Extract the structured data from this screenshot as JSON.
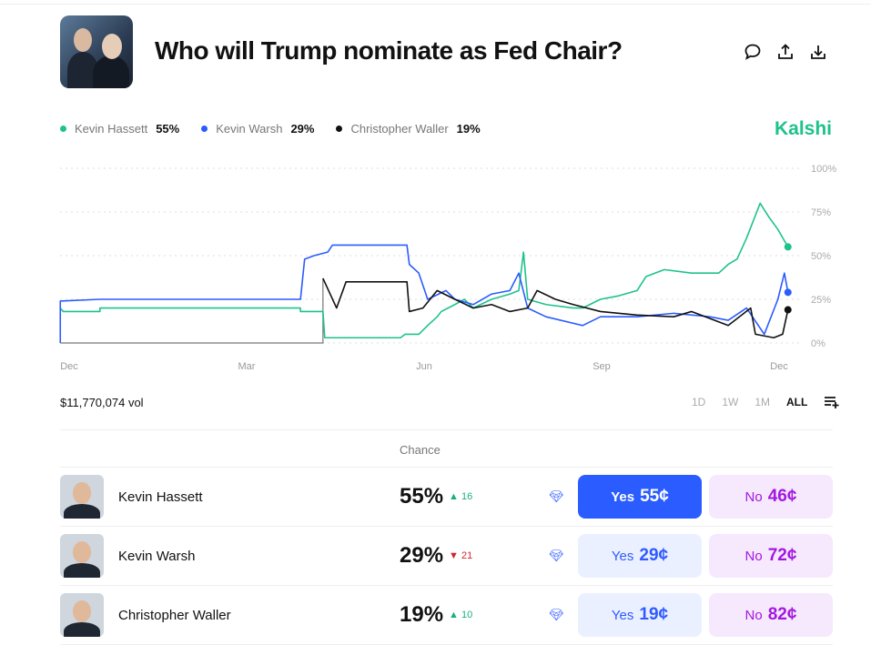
{
  "title": "Who will Trump nominate as Fed Chair?",
  "brand": "Kalshi",
  "legend": [
    {
      "name": "Kevin Hassett",
      "value": "55%",
      "color": "#1ec28b"
    },
    {
      "name": "Kevin Warsh",
      "value": "29%",
      "color": "#2a5cff"
    },
    {
      "name": "Christopher Waller",
      "value": "19%",
      "color": "#111111"
    }
  ],
  "volume": "$11,770,074 vol",
  "ranges": [
    "1D",
    "1W",
    "1M",
    "ALL"
  ],
  "active_range": "ALL",
  "chance_header": "Chance",
  "rows": [
    {
      "name": "Kevin Hassett",
      "pct": "55%",
      "dir": "up",
      "change": "16",
      "yes": "Yes",
      "yes_price": "55¢",
      "no": "No",
      "no_price": "46¢"
    },
    {
      "name": "Kevin Warsh",
      "pct": "29%",
      "dir": "down",
      "change": "21",
      "yes": "Yes",
      "yes_price": "29¢",
      "no": "No",
      "no_price": "72¢"
    },
    {
      "name": "Christopher Waller",
      "pct": "19%",
      "dir": "up",
      "change": "10",
      "yes": "Yes",
      "yes_price": "19¢",
      "no": "No",
      "no_price": "82¢"
    }
  ],
  "chart_data": {
    "type": "line",
    "x_unit": "months since Dec",
    "x_ticks": [
      {
        "label": "Dec",
        "m": 0
      },
      {
        "label": "Mar",
        "m": 3
      },
      {
        "label": "Jun",
        "m": 6
      },
      {
        "label": "Sep",
        "m": 9
      },
      {
        "label": "Dec",
        "m": 12
      }
    ],
    "y_ticks": [
      "0%",
      "25%",
      "50%",
      "75%",
      "100%"
    ],
    "ylim": [
      0,
      100
    ],
    "series": [
      {
        "name": "Kevin Hassett",
        "color": "#1ec28b",
        "points": [
          [
            -0.15,
            20
          ],
          [
            -0.1,
            18
          ],
          [
            0.52,
            18
          ],
          [
            0.52,
            20
          ],
          [
            3.91,
            20
          ],
          [
            3.91,
            18
          ],
          [
            4.29,
            18
          ],
          [
            4.32,
            3
          ],
          [
            5.6,
            3
          ],
          [
            5.68,
            5
          ],
          [
            5.91,
            5
          ],
          [
            6.06,
            10
          ],
          [
            6.22,
            15
          ],
          [
            6.29,
            18
          ],
          [
            6.52,
            22
          ],
          [
            6.68,
            25
          ],
          [
            6.83,
            20
          ],
          [
            7.14,
            25
          ],
          [
            7.45,
            28
          ],
          [
            7.6,
            30
          ],
          [
            7.68,
            52
          ],
          [
            7.75,
            25
          ],
          [
            8.06,
            22
          ],
          [
            8.52,
            20
          ],
          [
            8.68,
            20
          ],
          [
            8.98,
            25
          ],
          [
            9.29,
            27
          ],
          [
            9.6,
            30
          ],
          [
            9.75,
            38
          ],
          [
            10.06,
            42
          ],
          [
            10.52,
            40
          ],
          [
            10.98,
            40
          ],
          [
            11.14,
            45
          ],
          [
            11.29,
            48
          ],
          [
            11.45,
            60
          ],
          [
            11.68,
            80
          ],
          [
            11.83,
            72
          ],
          [
            11.98,
            65
          ],
          [
            12.15,
            55
          ]
        ]
      },
      {
        "name": "Kevin Warsh",
        "color": "#2a5cff",
        "points": [
          [
            -0.15,
            0
          ],
          [
            -0.15,
            24
          ],
          [
            0.52,
            25
          ],
          [
            3.91,
            25
          ],
          [
            3.98,
            48
          ],
          [
            4.14,
            50
          ],
          [
            4.37,
            52
          ],
          [
            4.45,
            56
          ],
          [
            5.71,
            56
          ],
          [
            5.75,
            45
          ],
          [
            5.91,
            40
          ],
          [
            6.06,
            25
          ],
          [
            6.37,
            30
          ],
          [
            6.52,
            25
          ],
          [
            6.83,
            22
          ],
          [
            7.14,
            28
          ],
          [
            7.45,
            30
          ],
          [
            7.6,
            40
          ],
          [
            7.75,
            20
          ],
          [
            8.06,
            15
          ],
          [
            8.68,
            10
          ],
          [
            8.98,
            15
          ],
          [
            9.6,
            15
          ],
          [
            10.22,
            17
          ],
          [
            10.83,
            15
          ],
          [
            11.14,
            13
          ],
          [
            11.45,
            20
          ],
          [
            11.75,
            5
          ],
          [
            11.98,
            25
          ],
          [
            12.09,
            40
          ],
          [
            12.15,
            29
          ]
        ]
      },
      {
        "name": "Christopher Waller",
        "color": "#111111",
        "points": [
          [
            4.29,
            37
          ],
          [
            4.52,
            20
          ],
          [
            4.68,
            35
          ],
          [
            5.71,
            35
          ],
          [
            5.75,
            18
          ],
          [
            5.98,
            20
          ],
          [
            6.22,
            30
          ],
          [
            6.52,
            25
          ],
          [
            6.83,
            20
          ],
          [
            7.14,
            22
          ],
          [
            7.45,
            18
          ],
          [
            7.75,
            20
          ],
          [
            7.91,
            30
          ],
          [
            8.22,
            25
          ],
          [
            8.52,
            22
          ],
          [
            8.98,
            18
          ],
          [
            9.6,
            16
          ],
          [
            10.22,
            15
          ],
          [
            10.52,
            18
          ],
          [
            11.14,
            10
          ],
          [
            11.52,
            20
          ],
          [
            11.6,
            5
          ],
          [
            11.91,
            3
          ],
          [
            12.06,
            5
          ],
          [
            12.15,
            19
          ]
        ]
      }
    ]
  }
}
